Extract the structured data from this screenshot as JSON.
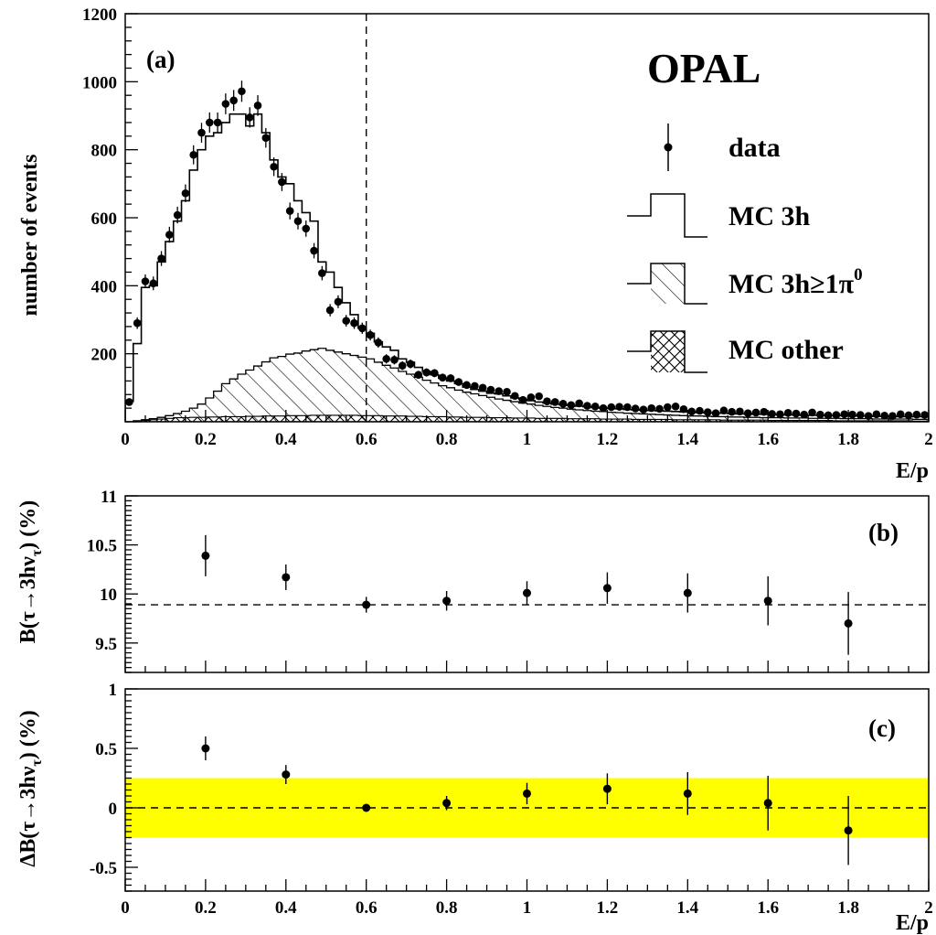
{
  "chart_data": [
    {
      "type": "histogram",
      "panel_label": "(a)",
      "experiment_label": "OPAL",
      "xlabel": "E/p",
      "ylabel": "number of events",
      "xlim": [
        0,
        2
      ],
      "ylim": [
        0,
        1200
      ],
      "x_ticks": [
        "0",
        "0.2",
        "0.4",
        "0.6",
        "0.8",
        "1",
        "1.2",
        "1.4",
        "1.6",
        "1.8",
        "2"
      ],
      "y_ticks": [
        "200",
        "400",
        "600",
        "800",
        "1000",
        "1200"
      ],
      "cut_line_x": 0.6,
      "bin_width": 0.02,
      "legend": {
        "data": "data",
        "mc3h": "MC 3h",
        "mc3hpi0": "MC 3h≥1π",
        "mc3hpi0_sup": "0",
        "mcother": "MC other"
      },
      "series": [
        {
          "name": "data",
          "style": "points with error bars",
          "x": [
            0.01,
            0.03,
            0.05,
            0.07,
            0.09,
            0.11,
            0.13,
            0.15,
            0.17,
            0.19,
            0.21,
            0.23,
            0.25,
            0.27,
            0.29,
            0.31,
            0.33,
            0.35,
            0.37,
            0.39,
            0.41,
            0.43,
            0.45,
            0.47,
            0.49,
            0.51,
            0.53,
            0.55,
            0.57,
            0.59,
            0.61,
            0.63,
            0.65,
            0.67,
            0.69,
            0.71,
            0.73,
            0.75,
            0.77,
            0.79,
            0.81,
            0.83,
            0.85,
            0.87,
            0.89,
            0.91,
            0.93,
            0.95,
            0.97,
            0.99,
            1.01,
            1.03,
            1.05,
            1.07,
            1.09,
            1.11,
            1.13,
            1.15,
            1.17,
            1.19,
            1.21,
            1.23,
            1.25,
            1.27,
            1.29,
            1.31,
            1.33,
            1.35,
            1.37,
            1.39,
            1.41,
            1.43,
            1.45,
            1.47,
            1.49,
            1.51,
            1.53,
            1.55,
            1.57,
            1.59,
            1.61,
            1.63,
            1.65,
            1.67,
            1.69,
            1.71,
            1.73,
            1.75,
            1.77,
            1.79,
            1.81,
            1.83,
            1.85,
            1.87,
            1.89,
            1.91,
            1.93,
            1.95,
            1.97,
            1.99
          ],
          "y": [
            58,
            290,
            413,
            407,
            480,
            550,
            608,
            672,
            785,
            850,
            880,
            880,
            935,
            945,
            972,
            895,
            930,
            835,
            750,
            705,
            620,
            590,
            568,
            503,
            437,
            328,
            353,
            297,
            290,
            275,
            255,
            233,
            185,
            182,
            165,
            170,
            138,
            145,
            143,
            130,
            128,
            117,
            108,
            105,
            100,
            94,
            90,
            88,
            76,
            64,
            72,
            75,
            60,
            58,
            53,
            49,
            54,
            47,
            45,
            40,
            43,
            44,
            43,
            39,
            36,
            40,
            38,
            43,
            45,
            37,
            30,
            32,
            28,
            25,
            33,
            29,
            30,
            25,
            27,
            29,
            23,
            22,
            26,
            24,
            21,
            27,
            21,
            19,
            20,
            22,
            21,
            20,
            17,
            22,
            18,
            17,
            22,
            19,
            21,
            20
          ]
        },
        {
          "name": "MC 3h",
          "style": "step outline",
          "x_edges_start": 0,
          "values": [
            60,
            230,
            395,
            400,
            470,
            530,
            590,
            650,
            740,
            800,
            840,
            850,
            880,
            905,
            905,
            870,
            905,
            850,
            770,
            720,
            700,
            650,
            615,
            590,
            470,
            440,
            395,
            350,
            315,
            275,
            260,
            235,
            220,
            210,
            185,
            175,
            160,
            148,
            138,
            128,
            120,
            112,
            102,
            95,
            90,
            84,
            82,
            76,
            70,
            66,
            62,
            58,
            55,
            52,
            50,
            48,
            46,
            44,
            42,
            40,
            39,
            38,
            36,
            35,
            34,
            33,
            32,
            31,
            30,
            29,
            28,
            27,
            26,
            26,
            25,
            24,
            23,
            23,
            22,
            22,
            21,
            21,
            20,
            20,
            19,
            19,
            19,
            18,
            18,
            18,
            17,
            17,
            17,
            16,
            16,
            16,
            15,
            15,
            15,
            15
          ]
        },
        {
          "name": "MC 3h≥1π0",
          "style": "single-hatched step histogram",
          "x_edges_start": 0,
          "values": [
            0,
            3,
            6,
            9,
            13,
            18,
            24,
            31,
            40,
            52,
            70,
            90,
            112,
            126,
            140,
            152,
            164,
            176,
            188,
            192,
            199,
            202,
            208,
            212,
            216,
            210,
            205,
            200,
            195,
            190,
            185,
            175,
            166,
            158,
            148,
            140,
            131,
            122,
            114,
            106,
            100,
            93,
            87,
            82,
            77,
            72,
            67,
            63,
            59,
            55,
            52,
            48,
            45,
            42,
            40,
            37,
            35,
            33,
            31,
            30,
            28,
            27,
            25,
            24,
            23,
            22,
            21,
            20,
            19,
            18,
            17,
            17,
            16,
            15,
            15,
            14,
            14,
            13,
            13,
            12,
            12,
            12,
            11,
            11,
            11,
            10,
            10,
            10,
            10,
            9,
            9,
            9,
            9,
            8,
            8,
            8,
            8,
            8,
            7,
            7
          ]
        },
        {
          "name": "MC other",
          "style": "cross-hatched step histogram",
          "x_edges_start": 0,
          "values": [
            0,
            2,
            4,
            6,
            8,
            10,
            12,
            12,
            13,
            13,
            14,
            14,
            15,
            15,
            15,
            16,
            16,
            17,
            17,
            17,
            18,
            18,
            18,
            19,
            19,
            19,
            19,
            19,
            19,
            18,
            18,
            18,
            17,
            17,
            17,
            16,
            16,
            15,
            15,
            15,
            14,
            14,
            13,
            13,
            13,
            12,
            12,
            12,
            11,
            11,
            11,
            10,
            10,
            10,
            10,
            9,
            9,
            9,
            9,
            8,
            8,
            8,
            8,
            7,
            7,
            7,
            7,
            7,
            6,
            6,
            6,
            6,
            6,
            6,
            5,
            5,
            5,
            5,
            5,
            5,
            4,
            4,
            4,
            4,
            4,
            4,
            4,
            4,
            3,
            3,
            3,
            3,
            3,
            3,
            3,
            3,
            3,
            3,
            2,
            2
          ]
        }
      ]
    },
    {
      "type": "scatter",
      "panel_label": "(b)",
      "xlabel": "",
      "ylabel": "B(τ→3hν",
      "ylabel_sub": "τ",
      "ylabel_tail": ") (%)",
      "xlim": [
        0,
        2
      ],
      "ylim": [
        9.2,
        11
      ],
      "x_ticks": [],
      "y_ticks": [
        "9.5",
        "10",
        "10.5",
        "11"
      ],
      "reference_line_y": 9.89,
      "series": [
        {
          "x": [
            0.2,
            0.4,
            0.6,
            0.8,
            1.0,
            1.2,
            1.4,
            1.6,
            1.8
          ],
          "y": [
            10.39,
            10.17,
            9.89,
            9.93,
            10.01,
            10.06,
            10.01,
            9.93,
            9.7
          ],
          "y_err": [
            0.21,
            0.13,
            0.08,
            0.1,
            0.12,
            0.16,
            0.2,
            0.25,
            0.32
          ]
        }
      ]
    },
    {
      "type": "scatter",
      "panel_label": "(c)",
      "xlabel": "E/p",
      "ylabel": "ΔB(τ→3hν",
      "ylabel_sub": "τ",
      "ylabel_tail": ") (%)",
      "xlim": [
        0,
        2
      ],
      "ylim": [
        -0.7,
        1
      ],
      "x_ticks": [
        "0",
        "0.2",
        "0.4",
        "0.6",
        "0.8",
        "1",
        "1.2",
        "1.4",
        "1.6",
        "1.8",
        "2"
      ],
      "y_ticks": [
        "-0.5",
        "0",
        "0.5",
        "1"
      ],
      "reference_line_y": 0,
      "band": [
        -0.25,
        0.25
      ],
      "band_color": "#ffff00",
      "series": [
        {
          "x": [
            0.2,
            0.4,
            0.6,
            0.8,
            1.0,
            1.2,
            1.4,
            1.6,
            1.8
          ],
          "y": [
            0.5,
            0.28,
            0.0,
            0.04,
            0.12,
            0.16,
            0.12,
            0.04,
            -0.19
          ],
          "y_err": [
            0.1,
            0.08,
            0.02,
            0.06,
            0.09,
            0.13,
            0.18,
            0.23,
            0.29
          ]
        }
      ]
    }
  ]
}
